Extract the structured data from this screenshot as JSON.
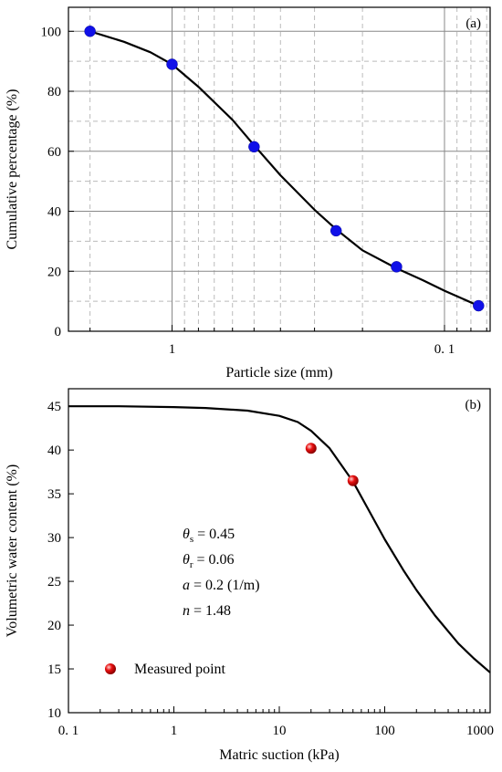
{
  "chart_data": [
    {
      "type": "line",
      "panel_label": "(a)",
      "xlabel": "Particle size (mm)",
      "ylabel": "Cumulative percentage (%)",
      "xscale": "log",
      "x_reversed": true,
      "xlim": [
        2.4,
        0.068
      ],
      "ylim": [
        0,
        108
      ],
      "grid": true,
      "x_tick_labels": [
        {
          "value": 1,
          "label": "1"
        },
        {
          "value": 0.1,
          "label": "0. 1"
        }
      ],
      "y_ticks": [
        0,
        20,
        40,
        60,
        80,
        100
      ],
      "series": [
        {
          "marker": "circle",
          "color": "#1010e8",
          "x": [
            2,
            1,
            0.5,
            0.25,
            0.15,
            0.075
          ],
          "y": [
            100,
            89,
            61.5,
            33.5,
            21.5,
            8.5
          ]
        }
      ],
      "curve": {
        "color": "#000000",
        "x": [
          2,
          1.5,
          1.2,
          1,
          0.8,
          0.6,
          0.5,
          0.4,
          0.3,
          0.25,
          0.2,
          0.15,
          0.12,
          0.1,
          0.075
        ],
        "y": [
          100,
          96.5,
          93,
          89,
          81.5,
          70.5,
          62,
          52,
          40.5,
          34,
          27,
          21,
          17,
          13.5,
          8.5
        ]
      }
    },
    {
      "type": "line",
      "panel_label": "(b)",
      "xlabel": "Matric suction (kPa)",
      "ylabel": "Volumetric water content (%)",
      "xscale": "log",
      "xlim": [
        0.1,
        1000
      ],
      "ylim": [
        10,
        47
      ],
      "grid": false,
      "x_tick_labels": [
        {
          "value": 0.1,
          "label": "0. 1"
        },
        {
          "value": 1,
          "label": "1"
        },
        {
          "value": 10,
          "label": "10"
        },
        {
          "value": 100,
          "label": "100"
        },
        {
          "value": 1000,
          "label": "1000"
        }
      ],
      "y_ticks": [
        10,
        15,
        20,
        25,
        30,
        35,
        40,
        45
      ],
      "series": [
        {
          "name": "Measured point",
          "marker": "sphere",
          "color": "#e81010",
          "x": [
            20,
            50
          ],
          "y": [
            40.2,
            36.5
          ]
        }
      ],
      "curve": {
        "color": "#000000",
        "x": [
          0.1,
          0.3,
          1,
          2,
          5,
          10,
          15,
          20,
          30,
          50,
          70,
          100,
          150,
          200,
          300,
          500,
          700,
          1000
        ],
        "y": [
          45,
          45,
          44.9,
          44.8,
          44.5,
          43.9,
          43.2,
          42.2,
          40.2,
          36.4,
          33.2,
          29.8,
          26.3,
          24,
          21.1,
          17.9,
          16.2,
          14.6
        ]
      },
      "parameters": [
        {
          "symbol": "θ",
          "sub": "s",
          "italic": true,
          "rest": " = 0.45"
        },
        {
          "symbol": "θ",
          "sub": "r",
          "italic": true,
          "rest": " = 0.06"
        },
        {
          "symbol": "a",
          "sub": "",
          "italic": true,
          "rest": " = 0.2 (1/m)"
        },
        {
          "symbol": "n",
          "sub": "",
          "italic": true,
          "rest": " = 1.48"
        }
      ]
    }
  ]
}
